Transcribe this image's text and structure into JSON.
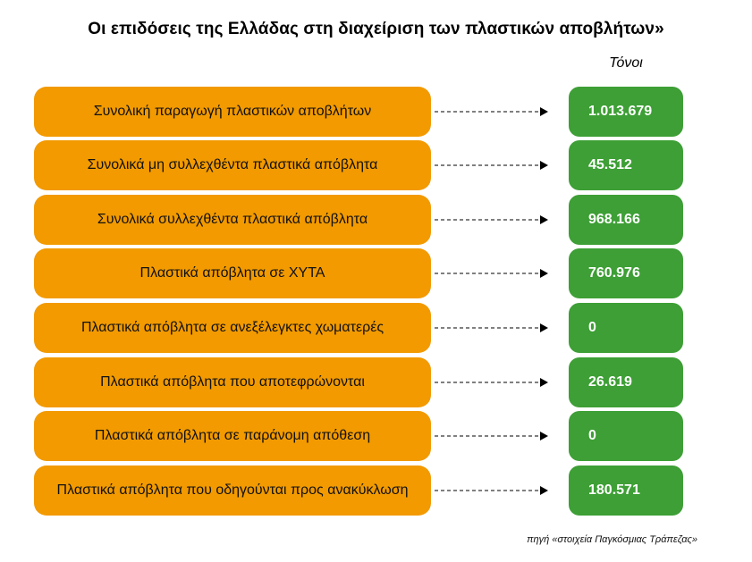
{
  "title": "Οι επιδόσεις της Ελλάδας στη διαχείριση των πλαστικών αποβλήτων»",
  "unit_label": "Τόνοι",
  "colors": {
    "label_box": "#f29a00",
    "value_box": "#3d9f35",
    "arrow": "#000000"
  },
  "rows": [
    {
      "label": "Συνολική παραγωγή πλαστικών αποβλήτων",
      "value": "1.013.679"
    },
    {
      "label": "Συνολικά μη συλλεχθέντα πλαστικά απόβλητα",
      "value": "45.512"
    },
    {
      "label": "Συνολικά συλλεχθέντα πλαστικά απόβλητα",
      "value": "968.166"
    },
    {
      "label": "Πλαστικά απόβλητα σε ΧΥΤΑ",
      "value": "760.976"
    },
    {
      "label": "Πλαστικά απόβλητα σε ανεξέλεγκτες χωματερές",
      "value": "0"
    },
    {
      "label": "Πλαστικά απόβλητα που αποτεφρώνονται",
      "value": "26.619"
    },
    {
      "label": "Πλαστικά απόβλητα σε παράνομη απόθεση",
      "value": "0"
    },
    {
      "label": "Πλαστικά απόβλητα που οδηγούνται προς ανακύκλωση",
      "value": "180.571"
    }
  ],
  "source": "πηγή «στοιχεία Παγκόσμιας Τράπεζας»"
}
